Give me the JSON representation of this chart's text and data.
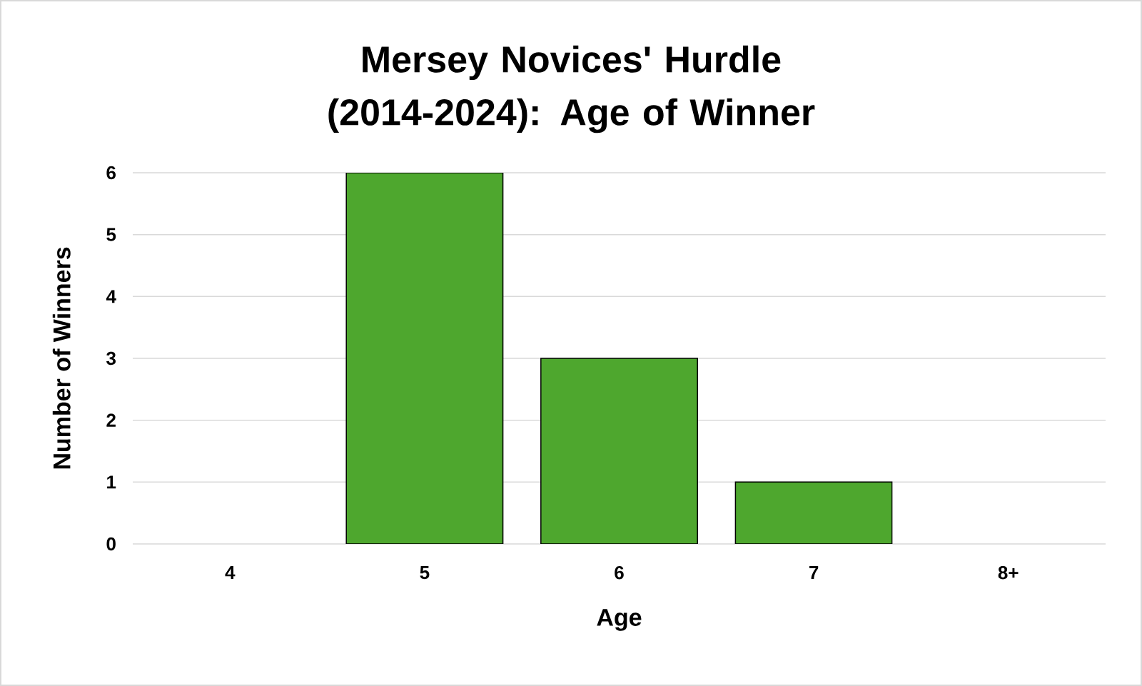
{
  "chart_data": {
    "type": "bar",
    "title": "Mersey Novices' Hurdle (2014-2024): Age of Winner",
    "xlabel": "Age",
    "ylabel": "Number of Winners",
    "categories": [
      "4",
      "5",
      "6",
      "7",
      "8+"
    ],
    "values": [
      0,
      6,
      3,
      1,
      0
    ],
    "color": "#4ea72e",
    "ylim": [
      0,
      6
    ],
    "yticks": [
      0,
      1,
      2,
      3,
      4,
      5,
      6
    ],
    "grid": "y"
  }
}
